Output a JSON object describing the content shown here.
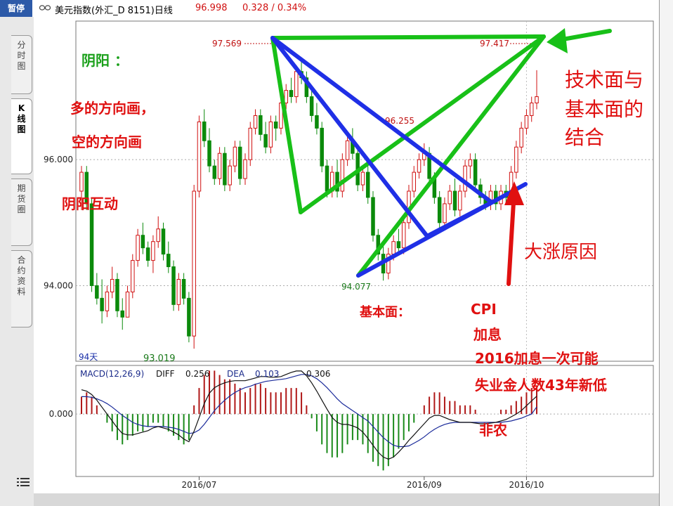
{
  "header": {
    "pause_label": "暂停",
    "title": "美元指数(外汇_D 8151)日线",
    "last_price": "96.998",
    "change": "0.328 / 0.34%"
  },
  "side_tabs": [
    {
      "label": "分时图"
    },
    {
      "label": "K线图"
    },
    {
      "label": "期货圈"
    },
    {
      "label": "合约资料"
    }
  ],
  "chart_data": [
    {
      "type": "candlestick",
      "title": "美元指数(外汇_D 8151)日线",
      "y_ticks": [
        "96.000",
        "94.000"
      ],
      "x_ticks": [
        "2016/07",
        "2016/09",
        "2016/10"
      ],
      "period_label": "94天",
      "price_labels": {
        "high": "97.569",
        "right_high": "97.417",
        "mid": "96.255",
        "low": "94.077",
        "period_low": "93.019"
      },
      "ylim": [
        92.8,
        98.2
      ],
      "candles": [
        [
          95.5,
          95.9,
          95.2,
          95.8
        ],
        [
          95.8,
          95.9,
          95.2,
          95.3
        ],
        [
          95.3,
          95.4,
          93.9,
          94.0
        ],
        [
          94.0,
          94.2,
          93.7,
          93.8
        ],
        [
          93.8,
          94.1,
          93.4,
          93.6
        ],
        [
          93.6,
          94.0,
          93.5,
          93.9
        ],
        [
          93.9,
          94.3,
          93.8,
          94.1
        ],
        [
          94.1,
          94.2,
          93.5,
          93.6
        ],
        [
          93.6,
          93.8,
          93.3,
          93.5
        ],
        [
          93.5,
          94.0,
          93.5,
          93.9
        ],
        [
          93.9,
          94.5,
          93.8,
          94.4
        ],
        [
          94.4,
          94.9,
          94.3,
          94.8
        ],
        [
          94.8,
          95.0,
          94.5,
          94.6
        ],
        [
          94.6,
          94.7,
          94.3,
          94.4
        ],
        [
          94.4,
          94.8,
          94.2,
          94.7
        ],
        [
          94.7,
          95.1,
          94.6,
          94.9
        ],
        [
          94.9,
          95.0,
          94.4,
          94.5
        ],
        [
          94.5,
          94.7,
          94.2,
          94.3
        ],
        [
          94.3,
          94.4,
          93.6,
          93.7
        ],
        [
          93.7,
          94.2,
          93.6,
          94.1
        ],
        [
          94.1,
          94.2,
          93.7,
          93.8
        ],
        [
          93.8,
          93.9,
          93.1,
          93.2
        ],
        [
          93.2,
          95.6,
          93.0,
          95.5
        ],
        [
          95.5,
          96.7,
          95.4,
          96.6
        ],
        [
          96.6,
          96.8,
          96.2,
          96.3
        ],
        [
          96.3,
          96.5,
          95.8,
          95.9
        ],
        [
          95.9,
          96.0,
          95.6,
          95.7
        ],
        [
          95.7,
          96.2,
          95.6,
          96.1
        ],
        [
          96.1,
          96.2,
          95.5,
          95.6
        ],
        [
          95.6,
          96.0,
          95.5,
          95.9
        ],
        [
          95.9,
          96.3,
          95.8,
          96.2
        ],
        [
          96.2,
          96.3,
          95.6,
          95.7
        ],
        [
          95.7,
          96.1,
          95.6,
          96.0
        ],
        [
          96.0,
          96.6,
          95.9,
          96.5
        ],
        [
          96.5,
          96.8,
          96.4,
          96.7
        ],
        [
          96.7,
          96.8,
          96.3,
          96.4
        ],
        [
          96.4,
          96.6,
          96.1,
          96.2
        ],
        [
          96.2,
          96.7,
          96.1,
          96.6
        ],
        [
          96.6,
          96.7,
          96.3,
          96.5
        ],
        [
          96.5,
          97.0,
          96.4,
          96.9
        ],
        [
          96.9,
          97.2,
          96.8,
          97.1
        ],
        [
          97.1,
          97.3,
          96.9,
          97.0
        ],
        [
          97.0,
          97.5,
          96.9,
          97.4
        ],
        [
          97.4,
          97.57,
          97.2,
          97.3
        ],
        [
          97.3,
          97.4,
          96.9,
          97.0
        ],
        [
          97.0,
          97.1,
          96.6,
          96.7
        ],
        [
          96.7,
          96.9,
          96.4,
          96.5
        ],
        [
          96.5,
          96.6,
          95.8,
          95.9
        ],
        [
          95.9,
          96.0,
          95.4,
          95.5
        ],
        [
          95.5,
          95.9,
          95.4,
          95.8
        ],
        [
          95.8,
          96.0,
          95.4,
          95.5
        ],
        [
          95.5,
          96.1,
          95.4,
          96.0
        ],
        [
          96.0,
          96.4,
          95.9,
          96.3
        ],
        [
          96.3,
          96.5,
          96.0,
          96.1
        ],
        [
          96.1,
          96.2,
          95.5,
          95.6
        ],
        [
          95.6,
          95.9,
          95.5,
          95.8
        ],
        [
          95.8,
          95.9,
          95.3,
          95.4
        ],
        [
          95.4,
          95.5,
          94.7,
          94.8
        ],
        [
          94.8,
          94.9,
          94.4,
          94.5
        ],
        [
          94.5,
          94.7,
          94.08,
          94.2
        ],
        [
          94.2,
          94.6,
          94.1,
          94.5
        ],
        [
          94.5,
          94.8,
          94.4,
          94.7
        ],
        [
          94.7,
          94.9,
          94.5,
          94.6
        ],
        [
          94.6,
          95.1,
          94.5,
          95.0
        ],
        [
          95.0,
          95.6,
          94.9,
          95.5
        ],
        [
          95.5,
          95.9,
          95.4,
          95.8
        ],
        [
          95.8,
          96.1,
          95.7,
          96.0
        ],
        [
          96.0,
          96.26,
          95.9,
          96.1
        ],
        [
          96.1,
          96.2,
          95.6,
          95.7
        ],
        [
          95.7,
          95.8,
          95.3,
          95.4
        ],
        [
          95.4,
          95.5,
          94.9,
          95.0
        ],
        [
          95.0,
          95.4,
          94.9,
          95.3
        ],
        [
          95.3,
          95.6,
          95.2,
          95.5
        ],
        [
          95.5,
          95.7,
          95.1,
          95.2
        ],
        [
          95.2,
          95.6,
          95.1,
          95.5
        ],
        [
          95.5,
          96.0,
          95.4,
          95.9
        ],
        [
          95.9,
          96.1,
          95.7,
          96.0
        ],
        [
          96.0,
          96.1,
          95.5,
          95.6
        ],
        [
          95.6,
          95.7,
          95.3,
          95.4
        ],
        [
          95.4,
          95.5,
          95.2,
          95.3
        ],
        [
          95.3,
          95.6,
          95.2,
          95.5
        ],
        [
          95.5,
          95.6,
          95.2,
          95.3
        ],
        [
          95.3,
          95.6,
          95.2,
          95.5
        ],
        [
          95.5,
          95.6,
          95.3,
          95.4
        ],
        [
          95.4,
          95.9,
          95.3,
          95.8
        ],
        [
          95.8,
          96.3,
          95.7,
          96.2
        ],
        [
          96.2,
          96.6,
          96.1,
          96.5
        ],
        [
          96.5,
          96.8,
          96.4,
          96.7
        ],
        [
          96.7,
          97.0,
          96.6,
          96.9
        ],
        [
          96.9,
          97.42,
          96.8,
          97.0
        ]
      ]
    },
    {
      "type": "bar",
      "title": "MACD(12,26,9)",
      "indicators": {
        "diff_label": "DIFF",
        "diff": "0.256",
        "dea_label": "DEA",
        "dea": "0.103",
        "macd": "0.306"
      },
      "y_ticks": [
        "0.000"
      ],
      "ylim": [
        -0.9,
        0.7
      ],
      "macd_values": [
        0.2,
        0.25,
        0.2,
        0.1,
        0.0,
        -0.1,
        -0.2,
        -0.3,
        -0.35,
        -0.3,
        -0.25,
        -0.2,
        -0.2,
        -0.15,
        -0.1,
        -0.1,
        -0.15,
        -0.2,
        -0.25,
        -0.3,
        -0.35,
        -0.3,
        0.1,
        0.3,
        0.45,
        0.5,
        0.5,
        0.45,
        0.4,
        0.4,
        0.35,
        0.3,
        0.25,
        0.3,
        0.35,
        0.35,
        0.3,
        0.25,
        0.25,
        0.25,
        0.3,
        0.3,
        0.3,
        0.25,
        0.1,
        -0.05,
        -0.2,
        -0.35,
        -0.45,
        -0.5,
        -0.5,
        -0.45,
        -0.35,
        -0.3,
        -0.3,
        -0.35,
        -0.45,
        -0.55,
        -0.6,
        -0.65,
        -0.6,
        -0.5,
        -0.4,
        -0.3,
        -0.2,
        -0.1,
        0.0,
        0.1,
        0.2,
        0.25,
        0.25,
        0.2,
        0.15,
        0.15,
        0.1,
        0.1,
        0.1,
        0.05,
        0.0,
        0.0,
        0.0,
        0.0,
        0.05,
        0.05,
        0.1,
        0.15,
        0.2,
        0.25,
        0.3,
        0.31
      ],
      "diff_values": [
        0.35,
        0.33,
        0.28,
        0.2,
        0.1,
        0.0,
        -0.1,
        -0.2,
        -0.28,
        -0.3,
        -0.3,
        -0.28,
        -0.26,
        -0.24,
        -0.2,
        -0.18,
        -0.2,
        -0.22,
        -0.26,
        -0.3,
        -0.36,
        -0.4,
        -0.25,
        -0.05,
        0.15,
        0.3,
        0.38,
        0.42,
        0.45,
        0.47,
        0.48,
        0.48,
        0.48,
        0.5,
        0.52,
        0.54,
        0.54,
        0.53,
        0.53,
        0.54,
        0.57,
        0.6,
        0.62,
        0.62,
        0.55,
        0.45,
        0.33,
        0.2,
        0.07,
        -0.05,
        -0.12,
        -0.15,
        -0.15,
        -0.17,
        -0.2,
        -0.26,
        -0.35,
        -0.45,
        -0.55,
        -0.62,
        -0.65,
        -0.62,
        -0.55,
        -0.47,
        -0.38,
        -0.3,
        -0.22,
        -0.14,
        -0.06,
        -0.02,
        -0.02,
        -0.05,
        -0.08,
        -0.1,
        -0.12,
        -0.12,
        -0.12,
        -0.13,
        -0.14,
        -0.14,
        -0.13,
        -0.12,
        -0.1,
        -0.08,
        -0.04,
        0.0,
        0.05,
        0.12,
        0.19,
        0.256
      ],
      "dea_values": [
        0.25,
        0.25,
        0.24,
        0.22,
        0.19,
        0.15,
        0.1,
        0.04,
        -0.02,
        -0.07,
        -0.12,
        -0.15,
        -0.17,
        -0.18,
        -0.18,
        -0.18,
        -0.18,
        -0.19,
        -0.2,
        -0.22,
        -0.25,
        -0.28,
        -0.27,
        -0.23,
        -0.15,
        -0.05,
        0.05,
        0.13,
        0.2,
        0.26,
        0.31,
        0.35,
        0.38,
        0.4,
        0.43,
        0.45,
        0.47,
        0.48,
        0.49,
        0.5,
        0.51,
        0.53,
        0.55,
        0.57,
        0.57,
        0.55,
        0.51,
        0.45,
        0.38,
        0.3,
        0.22,
        0.15,
        0.1,
        0.05,
        0.0,
        -0.05,
        -0.1,
        -0.18,
        -0.26,
        -0.34,
        -0.4,
        -0.45,
        -0.47,
        -0.47,
        -0.46,
        -0.42,
        -0.38,
        -0.33,
        -0.27,
        -0.22,
        -0.18,
        -0.15,
        -0.13,
        -0.12,
        -0.12,
        -0.12,
        -0.12,
        -0.12,
        -0.12,
        -0.12,
        -0.12,
        -0.12,
        -0.12,
        -0.11,
        -0.1,
        -0.08,
        -0.06,
        -0.03,
        0.0,
        0.103
      ]
    }
  ],
  "annotations": {
    "yin_yang": "阴阳 ：",
    "long_dir": "多的方向画，",
    "short_dir": "空的方向画",
    "interaction": "阴阳互动",
    "tech_fund_1": "技术面与",
    "tech_fund_2": "基本面的",
    "tech_fund_3": "结合",
    "big_rise": "大涨原因",
    "fundamentals": "基本面：",
    "cpi": "CPI",
    "rate_hike": "加息",
    "hike_2016": "2016加息一次可能",
    "unemployment": "失业金人数43年新低",
    "nonfarm": "非农"
  },
  "colors": {
    "up": "#d01010",
    "down": "#0b8a0b",
    "green_line": "#18c018",
    "blue_line": "#1f2fe6",
    "annotation_red": "#e01010"
  }
}
